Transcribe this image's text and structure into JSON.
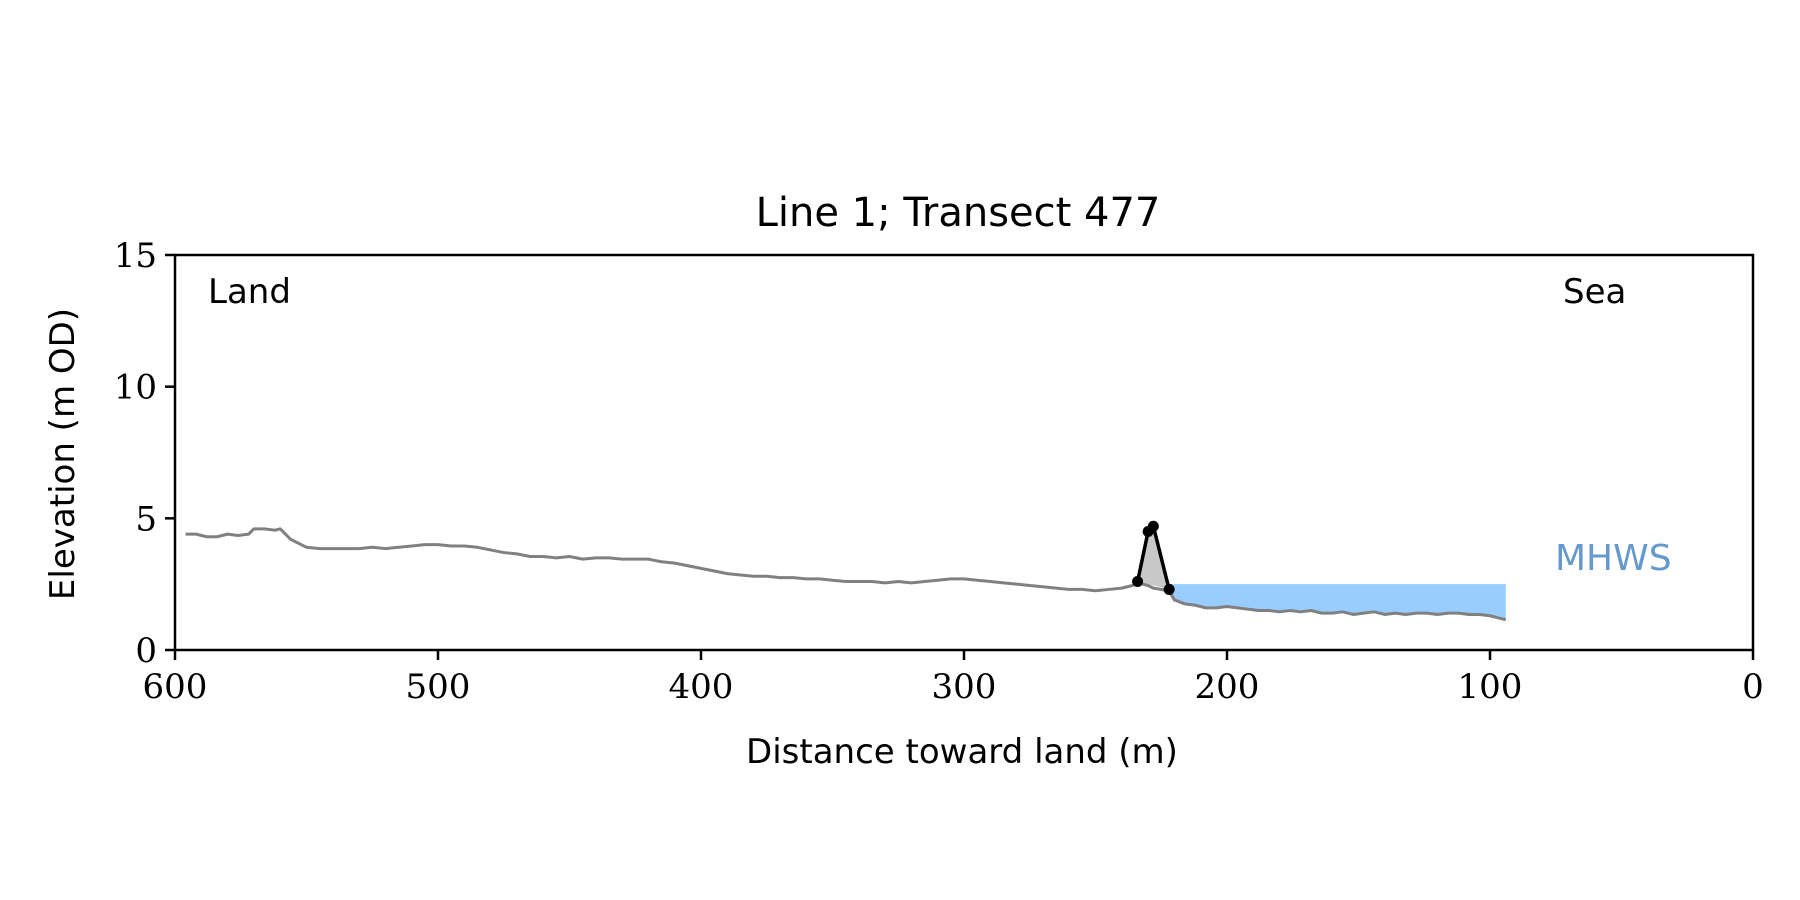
{
  "chart_data": {
    "type": "line",
    "title": "Line 1; Transect 477",
    "xlabel": "Distance toward land (m)",
    "ylabel": "Elevation (m OD)",
    "xlim": [
      600,
      0
    ],
    "ylim": [
      0,
      15
    ],
    "xticks": [
      600,
      500,
      400,
      300,
      200,
      100,
      0
    ],
    "yticks": [
      0,
      5,
      10,
      15
    ],
    "grid": false,
    "annotations": {
      "land": "Land",
      "sea": "Sea",
      "mhws": "MHWS"
    },
    "colors": {
      "profile": "#808080",
      "feature": "#000000",
      "feature_fill": "#c8c8c8",
      "water": "#99ccff",
      "mhws_label": "#6699cc"
    },
    "mhws": {
      "level": 2.5,
      "x_from": 222,
      "x_to": 94
    },
    "series": [
      {
        "role": "profile",
        "x": [
          596,
          592,
          588,
          584,
          580,
          576,
          572,
          570,
          566,
          562,
          560,
          556,
          550,
          545,
          540,
          535,
          530,
          525,
          520,
          515,
          510,
          505,
          500,
          495,
          490,
          485,
          480,
          475,
          470,
          465,
          460,
          455,
          450,
          445,
          440,
          435,
          430,
          425,
          420,
          415,
          410,
          405,
          400,
          395,
          390,
          385,
          380,
          375,
          370,
          365,
          360,
          355,
          350,
          345,
          340,
          335,
          330,
          325,
          320,
          315,
          310,
          305,
          300,
          295,
          290,
          285,
          280,
          275,
          270,
          265,
          260,
          255,
          250,
          245,
          240,
          236,
          234,
          230,
          228,
          222,
          220,
          216,
          212,
          208,
          204,
          200,
          196,
          192,
          188,
          184,
          180,
          176,
          172,
          168,
          164,
          160,
          156,
          152,
          148,
          144,
          140,
          136,
          132,
          128,
          124,
          120,
          116,
          112,
          108,
          104,
          100,
          96,
          94
        ],
        "y": [
          4.4,
          4.4,
          4.3,
          4.3,
          4.4,
          4.35,
          4.4,
          4.6,
          4.6,
          4.55,
          4.6,
          4.2,
          3.9,
          3.85,
          3.85,
          3.85,
          3.85,
          3.9,
          3.85,
          3.9,
          3.95,
          4.0,
          4.0,
          3.95,
          3.95,
          3.9,
          3.8,
          3.7,
          3.65,
          3.55,
          3.55,
          3.5,
          3.55,
          3.45,
          3.5,
          3.5,
          3.45,
          3.45,
          3.45,
          3.35,
          3.3,
          3.2,
          3.1,
          3.0,
          2.9,
          2.85,
          2.8,
          2.8,
          2.75,
          2.75,
          2.7,
          2.7,
          2.65,
          2.6,
          2.6,
          2.6,
          2.55,
          2.6,
          2.55,
          2.6,
          2.65,
          2.7,
          2.7,
          2.65,
          2.6,
          2.55,
          2.5,
          2.45,
          2.4,
          2.35,
          2.3,
          2.3,
          2.25,
          2.3,
          2.35,
          2.45,
          2.55,
          2.45,
          2.35,
          2.25,
          1.9,
          1.75,
          1.7,
          1.6,
          1.6,
          1.65,
          1.6,
          1.55,
          1.5,
          1.5,
          1.45,
          1.5,
          1.45,
          1.5,
          1.4,
          1.4,
          1.45,
          1.35,
          1.4,
          1.45,
          1.35,
          1.4,
          1.35,
          1.4,
          1.4,
          1.35,
          1.4,
          1.4,
          1.35,
          1.35,
          1.3,
          1.2,
          1.15
        ]
      },
      {
        "role": "feature",
        "x": [
          234,
          230,
          228,
          222
        ],
        "y": [
          2.6,
          4.5,
          4.7,
          2.3
        ]
      }
    ]
  }
}
